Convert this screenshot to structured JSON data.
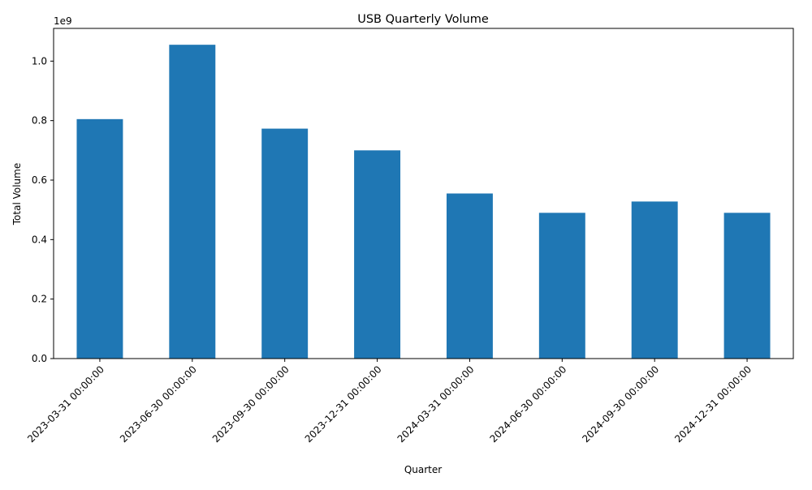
{
  "chart_data": {
    "type": "bar",
    "title": "USB Quarterly Volume",
    "xlabel": "Quarter",
    "ylabel": "Total Volume",
    "offset_text": "1e9",
    "scale": 1000000000,
    "categories": [
      "2023-03-31 00:00:00",
      "2023-06-30 00:00:00",
      "2023-09-30 00:00:00",
      "2023-12-31 00:00:00",
      "2024-03-31 00:00:00",
      "2024-06-30 00:00:00",
      "2024-09-30 00:00:00",
      "2024-12-31 00:00:00"
    ],
    "values": [
      805000000,
      1055000000,
      773000000,
      700000000,
      555000000,
      490000000,
      528000000,
      490000000
    ],
    "yticks": [
      0.0,
      0.2,
      0.4,
      0.6,
      0.8,
      1.0
    ],
    "ytick_labels": [
      "0.0",
      "0.2",
      "0.4",
      "0.6",
      "0.8",
      "1.0"
    ],
    "ylim": [
      0,
      1110000000
    ],
    "bar_color": "#1f77b4",
    "grid": false,
    "legend": "none"
  }
}
